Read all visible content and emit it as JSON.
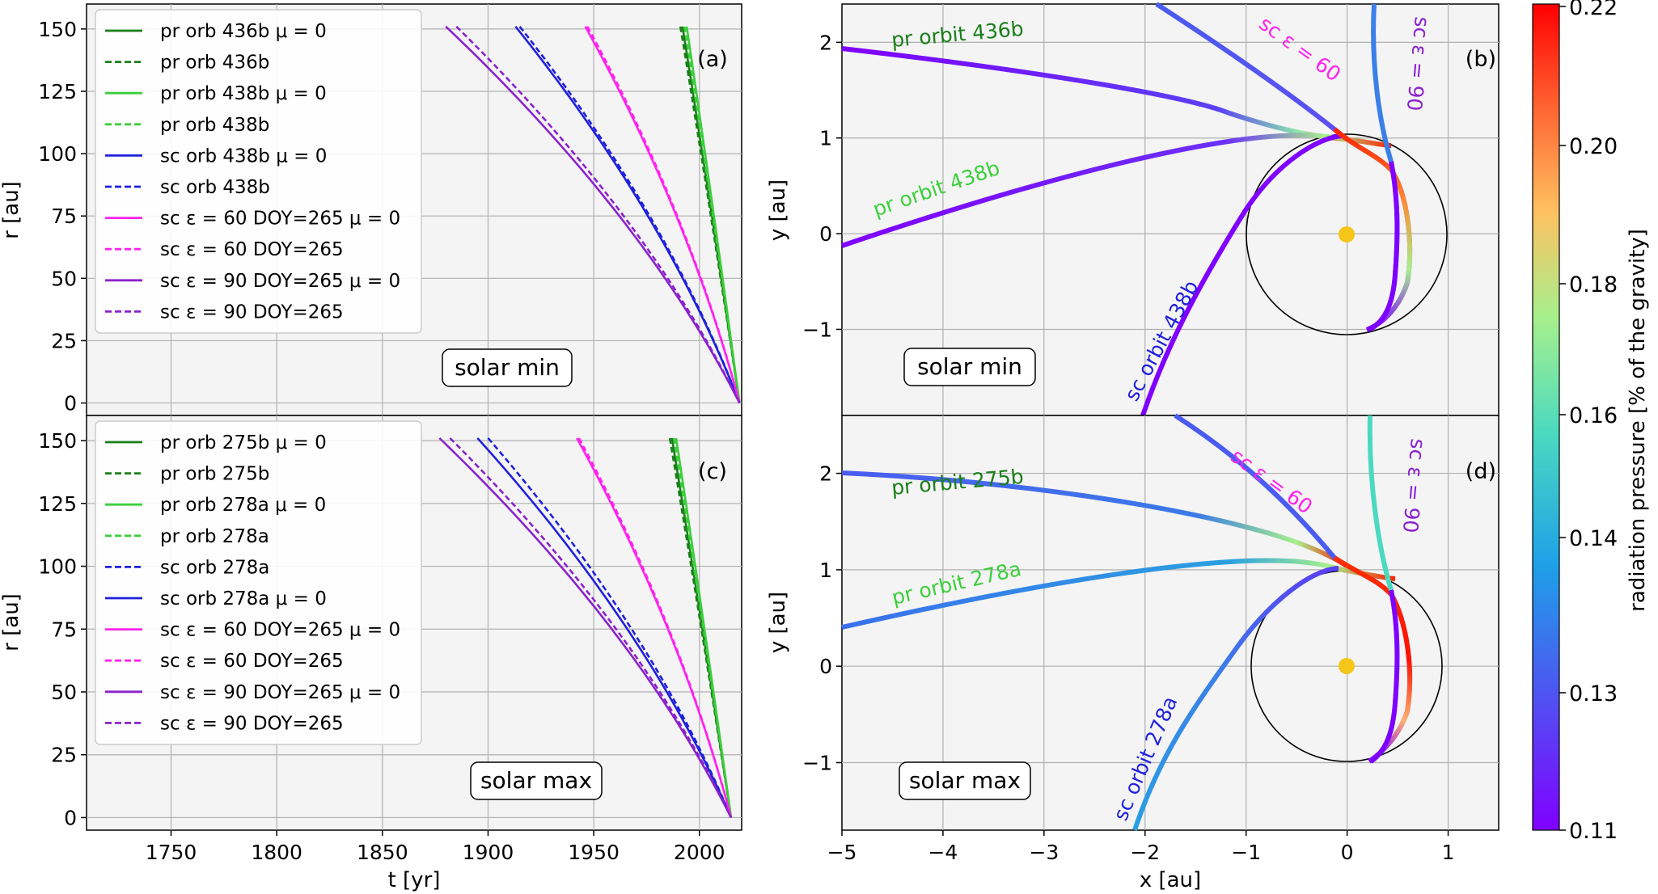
{
  "chart_data": {
    "colorbar": {
      "label": "radiation pressure [% of the gravity]",
      "ticks": [
        "0.11",
        "0.13",
        "0.14",
        "0.16",
        "0.18",
        "0.20",
        "0.22"
      ],
      "range": [
        0.11,
        0.22
      ]
    },
    "panels": [
      {
        "id": "a",
        "type": "line",
        "tag": "(a)",
        "condition": "solar min",
        "xlabel": "",
        "ylabel": "r [au]",
        "xlim": [
          1710,
          2020
        ],
        "ylim": [
          -5,
          160
        ],
        "xticks": [],
        "yticks": [
          "0",
          "25",
          "50",
          "75",
          "100",
          "125",
          "150"
        ],
        "legend": [
          "pr orb 436b μ = 0",
          "pr orb 436b",
          "pr orb 438b μ = 0",
          "pr orb 438b",
          "sc orb 438b μ = 0",
          "sc orb 438b",
          "sc ε = 60 DOY=265 μ = 0",
          "sc ε = 60 DOY=265",
          "sc ε = 90 DOY=265 μ = 0",
          "sc ε = 90 DOY=265"
        ],
        "series": [
          {
            "color": "#1a7f1a",
            "dash": false,
            "start_t": 1992,
            "end_t": 2019
          },
          {
            "color": "#1a7f1a",
            "dash": true,
            "start_t": 1991,
            "end_t": 2019
          },
          {
            "color": "#3ccf3c",
            "dash": false,
            "start_t": 1994,
            "end_t": 2019
          },
          {
            "color": "#3ccf3c",
            "dash": true,
            "start_t": 1993,
            "end_t": 2019
          },
          {
            "color": "#2020dd",
            "dash": false,
            "start_t": 1913,
            "end_t": 2019
          },
          {
            "color": "#2020dd",
            "dash": true,
            "start_t": 1915,
            "end_t": 2019
          },
          {
            "color": "#ff22ee",
            "dash": false,
            "start_t": 1946,
            "end_t": 2019
          },
          {
            "color": "#ff22ee",
            "dash": true,
            "start_t": 1947,
            "end_t": 2019
          },
          {
            "color": "#8b22cc",
            "dash": false,
            "start_t": 1880,
            "end_t": 2019
          },
          {
            "color": "#8b22cc",
            "dash": true,
            "start_t": 1885,
            "end_t": 2019
          }
        ]
      },
      {
        "id": "c",
        "type": "line",
        "tag": "(c)",
        "condition": "solar max",
        "xlabel": "t [yr]",
        "ylabel": "r [au]",
        "xlim": [
          1710,
          2020
        ],
        "ylim": [
          -5,
          160
        ],
        "xticks": [
          "1750",
          "1800",
          "1850",
          "1900",
          "1950",
          "2000"
        ],
        "yticks": [
          "0",
          "25",
          "50",
          "75",
          "100",
          "125",
          "150"
        ],
        "legend": [
          "pr orb 275b μ = 0",
          "pr orb 275b",
          "pr orb 278a μ = 0",
          "pr orb 278a",
          "sc orb 278a",
          "sc orb 278a μ = 0",
          "sc ε = 60 DOY=265 μ = 0",
          "sc ε = 60 DOY=265",
          "sc ε = 90 DOY=265 μ = 0",
          "sc ε = 90 DOY=265"
        ],
        "series": [
          {
            "color": "#1a7f1a",
            "dash": false,
            "start_t": 1987,
            "end_t": 2015
          },
          {
            "color": "#1a7f1a",
            "dash": true,
            "start_t": 1986,
            "end_t": 2015
          },
          {
            "color": "#3ccf3c",
            "dash": false,
            "start_t": 1989,
            "end_t": 2015
          },
          {
            "color": "#3ccf3c",
            "dash": true,
            "start_t": 1988,
            "end_t": 2015
          },
          {
            "color": "#2020dd",
            "dash": true,
            "start_t": 1900,
            "end_t": 2015
          },
          {
            "color": "#2020dd",
            "dash": false,
            "start_t": 1895,
            "end_t": 2015
          },
          {
            "color": "#ff22ee",
            "dash": false,
            "start_t": 1942,
            "end_t": 2015
          },
          {
            "color": "#ff22ee",
            "dash": true,
            "start_t": 1943,
            "end_t": 2015
          },
          {
            "color": "#8b22cc",
            "dash": false,
            "start_t": 1877,
            "end_t": 2015
          },
          {
            "color": "#8b22cc",
            "dash": true,
            "start_t": 1882,
            "end_t": 2015
          }
        ]
      },
      {
        "id": "b",
        "type": "line",
        "tag": "(b)",
        "condition": "solar min",
        "xlabel": "",
        "ylabel": "y [au]",
        "xlim": [
          -5,
          1.5
        ],
        "ylim": [
          -1.9,
          2.4
        ],
        "xticks": [],
        "yticks": [
          "−1",
          "0",
          "1",
          "2"
        ],
        "orbit_labels": [
          {
            "text": "pr orbit 436b",
            "color": "#1a7f1a"
          },
          {
            "text": "pr orbit 438b",
            "color": "#3ccf3c"
          },
          {
            "text": "sc orbit 438b",
            "color": "#2020dd"
          },
          {
            "text": "sc ε = 60",
            "color": "#ff22ee"
          },
          {
            "text": "sc ε = 90",
            "color": "#8b22cc"
          }
        ]
      },
      {
        "id": "d",
        "type": "line",
        "tag": "(d)",
        "condition": "solar max",
        "xlabel": "x [au]",
        "ylabel": "y [au]",
        "xlim": [
          -5,
          1.5
        ],
        "ylim": [
          -1.7,
          2.6
        ],
        "xticks": [
          "−5",
          "−4",
          "−3",
          "−2",
          "−1",
          "0",
          "1"
        ],
        "yticks": [
          "−1",
          "0",
          "1",
          "2"
        ],
        "orbit_labels": [
          {
            "text": "pr orbit 275b",
            "color": "#1a7f1a"
          },
          {
            "text": "pr orbit 278a",
            "color": "#3ccf3c"
          },
          {
            "text": "sc orbit 278a",
            "color": "#2020dd"
          },
          {
            "text": "sc ε = 60",
            "color": "#ff22ee"
          },
          {
            "text": "sc ε = 90",
            "color": "#8b22cc"
          }
        ]
      }
    ]
  }
}
